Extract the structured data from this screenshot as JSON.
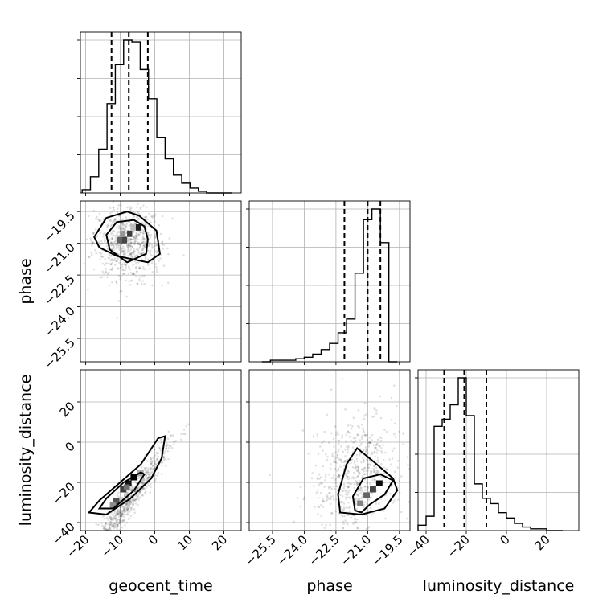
{
  "chart_data": {
    "type": "corner",
    "parameters": [
      "geocent_time",
      "phase",
      "luminosity_distance"
    ],
    "axis_labels": {
      "geocent_time": "geocent_time",
      "phase": "phase",
      "luminosity_distance": "luminosity_distance"
    },
    "ranges": {
      "geocent_time": [
        -21.5,
        25
      ],
      "phase": [
        -26.6,
        -19.0
      ],
      "luminosity_distance": [
        -44,
        36
      ]
    },
    "ticks": {
      "geocent_time": [
        -20,
        -10,
        0,
        10,
        20
      ],
      "phase": [
        -25.5,
        -24.0,
        -22.5,
        -21.0,
        -19.5
      ],
      "luminosity_distance": [
        -40,
        -20,
        0,
        20
      ]
    },
    "tick_labels": {
      "geocent_time": [
        "−20",
        "−10",
        "0",
        "10",
        "20"
      ],
      "phase": [
        "−25.5",
        "−24.0",
        "−22.5",
        "−21.0",
        "−19.5"
      ],
      "luminosity_distance": [
        "−40",
        "−20",
        "0",
        "20"
      ]
    },
    "quantiles": {
      "geocent_time": [
        -12.5,
        -7.5,
        -2.0
      ],
      "phase": [
        -22.1,
        -21.0,
        -20.4
      ],
      "luminosity_distance": [
        -31,
        -21,
        -10
      ]
    },
    "histograms": {
      "geocent_time": {
        "edges": [
          -21.0,
          -18.6,
          -16.2,
          -13.8,
          -11.4,
          -9.0,
          -6.6,
          -4.2,
          -1.8,
          0.6,
          3.0,
          5.4,
          7.8,
          10.2,
          12.6,
          15.0,
          17.4,
          19.8,
          22.2
        ],
        "counts": [
          2,
          10,
          27,
          55,
          79,
          94,
          93,
          76,
          58,
          34,
          21,
          11,
          6,
          3,
          1,
          0,
          0,
          0
        ]
      },
      "phase": {
        "edges": [
          -26.0,
          -25.6,
          -25.2,
          -24.8,
          -24.4,
          -24.0,
          -23.6,
          -23.2,
          -22.8,
          -22.4,
          -22.0,
          -21.6,
          -21.2,
          -20.8,
          -20.4,
          -20.0,
          -19.6
        ],
        "counts": [
          0,
          1,
          1,
          1,
          2,
          3,
          5,
          8,
          12,
          19,
          28,
          58,
          93,
          100,
          78,
          0
        ]
      },
      "luminosity_distance": {
        "edges": [
          -44,
          -40,
          -36,
          -32,
          -28,
          -24,
          -20,
          -16,
          -12,
          -8,
          -4,
          0,
          4,
          8,
          12,
          16,
          20,
          24,
          28
        ],
        "counts": [
          3,
          8,
          58,
          62,
          70,
          85,
          64,
          26,
          18,
          15,
          10,
          7,
          4,
          2,
          1,
          1,
          0,
          0
        ]
      }
    },
    "contour_levels": [
      "inner",
      "outer"
    ],
    "grid": true,
    "legend": "none"
  }
}
